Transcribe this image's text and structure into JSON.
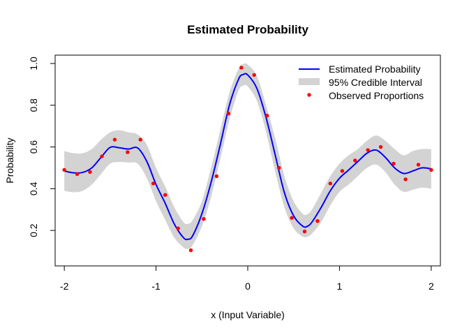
{
  "chart_data": {
    "type": "line",
    "title": "Estimated Probability",
    "xlabel": "x (Input Variable)",
    "ylabel": "Probability",
    "xlim": [
      -2.1,
      2.1
    ],
    "ylim": [
      0.03,
      1.04
    ],
    "x_ticks": [
      -2,
      -1,
      0,
      1,
      2
    ],
    "x_tick_labels": [
      "-2",
      "-1",
      "0",
      "1",
      "2"
    ],
    "y_ticks": [
      0.2,
      0.4,
      0.6,
      0.8,
      1.0
    ],
    "y_tick_labels": [
      "0.2",
      "0.4",
      "0.6",
      "0.8",
      "1.0"
    ],
    "grid": false,
    "legend_position": "top-right",
    "colors": {
      "estimate": "#0000ff",
      "interval": "#d3d3d3",
      "observed": "#ff0000"
    },
    "legend": [
      {
        "label": "Estimated Probability",
        "kind": "line"
      },
      {
        "label": "95% Credible Interval",
        "kind": "band"
      },
      {
        "label": "Observed Proportions",
        "kind": "point"
      }
    ],
    "series": [
      {
        "name": "Estimated Probability",
        "x": [
          -2.0,
          -1.9,
          -1.8,
          -1.7,
          -1.6,
          -1.5,
          -1.4,
          -1.3,
          -1.2,
          -1.1,
          -1.0,
          -0.9,
          -0.8,
          -0.7,
          -0.65,
          -0.6,
          -0.5,
          -0.4,
          -0.3,
          -0.2,
          -0.1,
          -0.05,
          0.0,
          0.1,
          0.2,
          0.3,
          0.4,
          0.5,
          0.6,
          0.65,
          0.7,
          0.8,
          0.9,
          1.0,
          1.1,
          1.2,
          1.3,
          1.4,
          1.5,
          1.6,
          1.7,
          1.8,
          1.9,
          2.0
        ],
        "y": [
          0.485,
          0.476,
          0.478,
          0.5,
          0.55,
          0.598,
          0.596,
          0.59,
          0.595,
          0.53,
          0.42,
          0.33,
          0.23,
          0.165,
          0.158,
          0.175,
          0.28,
          0.43,
          0.61,
          0.8,
          0.925,
          0.947,
          0.945,
          0.88,
          0.74,
          0.56,
          0.38,
          0.27,
          0.22,
          0.22,
          0.24,
          0.31,
          0.39,
          0.45,
          0.49,
          0.53,
          0.57,
          0.585,
          0.55,
          0.5,
          0.473,
          0.485,
          0.5,
          0.495
        ]
      },
      {
        "name": "95% Credible Interval",
        "x": [
          -2.0,
          -1.9,
          -1.8,
          -1.7,
          -1.6,
          -1.5,
          -1.4,
          -1.3,
          -1.2,
          -1.1,
          -1.0,
          -0.9,
          -0.8,
          -0.7,
          -0.65,
          -0.6,
          -0.5,
          -0.4,
          -0.3,
          -0.2,
          -0.1,
          -0.05,
          0.0,
          0.1,
          0.2,
          0.3,
          0.4,
          0.5,
          0.6,
          0.65,
          0.7,
          0.8,
          0.9,
          1.0,
          1.1,
          1.2,
          1.3,
          1.4,
          1.5,
          1.6,
          1.7,
          1.8,
          1.9,
          2.0
        ],
        "lower": [
          0.39,
          0.383,
          0.39,
          0.42,
          0.47,
          0.52,
          0.528,
          0.525,
          0.52,
          0.45,
          0.34,
          0.25,
          0.165,
          0.118,
          0.112,
          0.13,
          0.22,
          0.36,
          0.54,
          0.73,
          0.87,
          0.893,
          0.89,
          0.82,
          0.67,
          0.48,
          0.31,
          0.21,
          0.17,
          0.17,
          0.185,
          0.24,
          0.32,
          0.385,
          0.42,
          0.46,
          0.5,
          0.515,
          0.48,
          0.42,
          0.385,
          0.395,
          0.405,
          0.4
        ],
        "upper": [
          0.58,
          0.57,
          0.57,
          0.59,
          0.635,
          0.67,
          0.68,
          0.67,
          0.66,
          0.61,
          0.5,
          0.41,
          0.31,
          0.24,
          0.232,
          0.25,
          0.34,
          0.5,
          0.68,
          0.86,
          0.975,
          0.997,
          0.995,
          0.94,
          0.8,
          0.64,
          0.46,
          0.34,
          0.28,
          0.278,
          0.3,
          0.38,
          0.46,
          0.52,
          0.56,
          0.59,
          0.63,
          0.655,
          0.63,
          0.59,
          0.56,
          0.58,
          0.59,
          0.59
        ]
      },
      {
        "name": "Observed Proportions",
        "x": [
          -2.0,
          -1.86,
          -1.72,
          -1.59,
          -1.45,
          -1.31,
          -1.17,
          -1.03,
          -0.9,
          -0.76,
          -0.62,
          -0.48,
          -0.34,
          -0.21,
          -0.07,
          0.07,
          0.21,
          0.34,
          0.48,
          0.62,
          0.76,
          0.9,
          1.03,
          1.17,
          1.31,
          1.45,
          1.59,
          1.72,
          1.86,
          2.0
        ],
        "y": [
          0.49,
          0.47,
          0.48,
          0.555,
          0.635,
          0.575,
          0.635,
          0.425,
          0.37,
          0.21,
          0.105,
          0.255,
          0.46,
          0.76,
          0.98,
          0.945,
          0.75,
          0.5,
          0.26,
          0.195,
          0.245,
          0.425,
          0.485,
          0.535,
          0.585,
          0.6,
          0.52,
          0.445,
          0.515,
          0.49
        ]
      }
    ]
  }
}
